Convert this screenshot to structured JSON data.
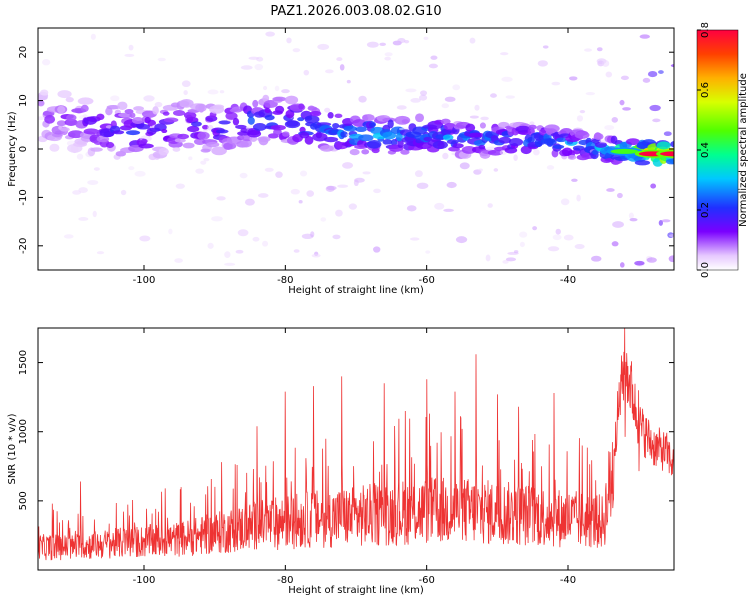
{
  "title": "PAZ1.2026.003.08.02.G10",
  "chart_data": [
    {
      "type": "heatmap",
      "xlabel": "Height of straight line (km)",
      "ylabel": "Frequency (Hz)",
      "xlim": [
        -115,
        -25
      ],
      "ylim": [
        -25,
        25
      ],
      "x_ticks": [
        "-100",
        "-80",
        "-60",
        "-40"
      ],
      "x_tick_values": [
        -100,
        -80,
        -60,
        -40
      ],
      "y_ticks": [
        "-20",
        "-10",
        "0",
        "10",
        "20"
      ],
      "y_tick_values": [
        -20,
        -10,
        0,
        10,
        20
      ],
      "colorbar": {
        "label": "Normalized spectral amplitude",
        "range": [
          0,
          0.8
        ],
        "ticks": [
          "0.0",
          "0.2",
          "0.4",
          "0.6",
          "0.8"
        ],
        "tick_values": [
          0,
          0.2,
          0.4,
          0.6,
          0.8
        ],
        "colormap": "rainbow (transparent-violet to red)"
      },
      "ridge": [
        {
          "x": -112,
          "f": 6,
          "amp": 0.12
        },
        {
          "x": -105,
          "f": 4,
          "amp": 0.18
        },
        {
          "x": -100,
          "f": 3,
          "amp": 0.2
        },
        {
          "x": -95,
          "f": 5,
          "amp": 0.18
        },
        {
          "x": -90,
          "f": 4,
          "amp": 0.2
        },
        {
          "x": -85,
          "f": 6,
          "amp": 0.22
        },
        {
          "x": -80,
          "f": 6,
          "amp": 0.25
        },
        {
          "x": -75,
          "f": 4,
          "amp": 0.28
        },
        {
          "x": -70,
          "f": 3,
          "amp": 0.3
        },
        {
          "x": -65,
          "f": 3,
          "amp": 0.3
        },
        {
          "x": -60,
          "f": 3,
          "amp": 0.28
        },
        {
          "x": -55,
          "f": 2,
          "amp": 0.28
        },
        {
          "x": -50,
          "f": 2,
          "amp": 0.26
        },
        {
          "x": -45,
          "f": 2,
          "amp": 0.28
        },
        {
          "x": -40,
          "f": 1,
          "amp": 0.3
        },
        {
          "x": -35,
          "f": 0,
          "amp": 0.35
        },
        {
          "x": -32,
          "f": -0.5,
          "amp": 0.45
        },
        {
          "x": -28,
          "f": -1,
          "amp": 0.8
        },
        {
          "x": -25,
          "f": -1,
          "amp": 0.8
        }
      ]
    },
    {
      "type": "line",
      "xlabel": "Height of straight line (km)",
      "ylabel": "SNR (10 * v/v)",
      "xlim": [
        -115,
        -25
      ],
      "ylim": [
        0,
        1750
      ],
      "x_ticks": [
        "-100",
        "-80",
        "-60",
        "-40"
      ],
      "x_tick_values": [
        -100,
        -80,
        -60,
        -40
      ],
      "y_ticks": [
        "500",
        "1000",
        "1500"
      ],
      "y_tick_values": [
        500,
        1000,
        1500
      ],
      "color": "#ee3333",
      "envelope_x": [
        -115,
        -110,
        -105,
        -100,
        -95,
        -90,
        -85,
        -80,
        -75,
        -70,
        -65,
        -60,
        -55,
        -50,
        -45,
        -40,
        -35,
        -33,
        -32,
        -31,
        -30,
        -28,
        -26,
        -25
      ],
      "envelope_mean": [
        200,
        200,
        230,
        250,
        270,
        320,
        380,
        420,
        450,
        470,
        500,
        520,
        520,
        500,
        480,
        450,
        420,
        1100,
        1500,
        1300,
        1050,
        900,
        850,
        750
      ],
      "peaks": [
        {
          "x": -113,
          "y": 480
        },
        {
          "x": -109,
          "y": 640
        },
        {
          "x": -97,
          "y": 590
        },
        {
          "x": -89,
          "y": 780
        },
        {
          "x": -84,
          "y": 1040
        },
        {
          "x": -80,
          "y": 1290
        },
        {
          "x": -76,
          "y": 1330
        },
        {
          "x": -72,
          "y": 1400
        },
        {
          "x": -66,
          "y": 1350
        },
        {
          "x": -63,
          "y": 1150
        },
        {
          "x": -60,
          "y": 1380
        },
        {
          "x": -56,
          "y": 1290
        },
        {
          "x": -53,
          "y": 1560
        },
        {
          "x": -50,
          "y": 1270
        },
        {
          "x": -47,
          "y": 1180
        },
        {
          "x": -42,
          "y": 1280
        },
        {
          "x": -38,
          "y": 900
        },
        {
          "x": -32,
          "y": 1750
        },
        {
          "x": -30,
          "y": 1300
        }
      ]
    }
  ]
}
